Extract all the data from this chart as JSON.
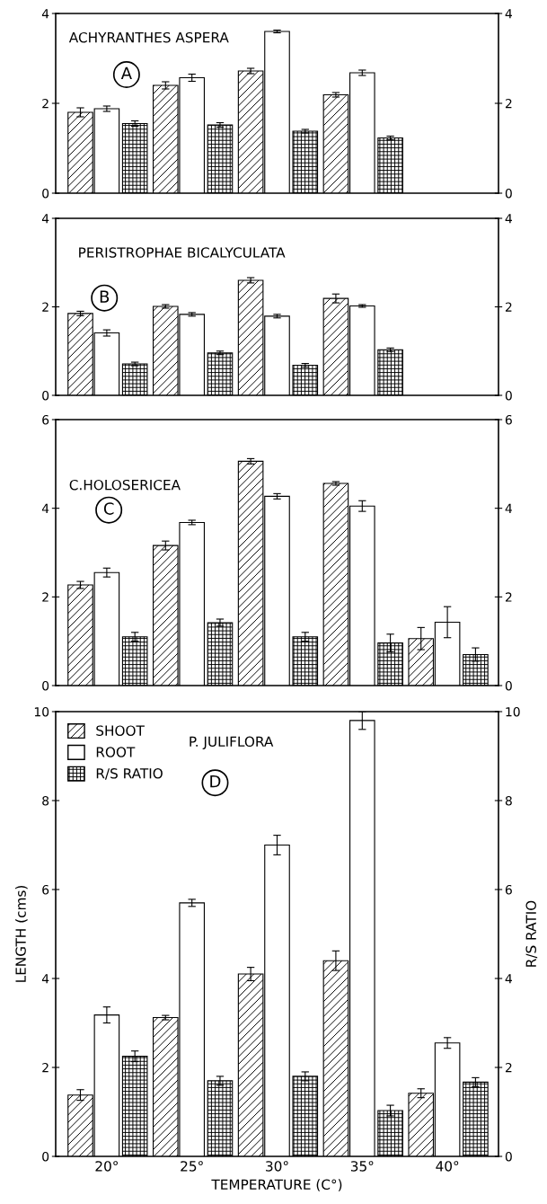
{
  "chart_data": [
    {
      "type": "bar",
      "title": "ACHYRANTHES ASPERA",
      "annotations": [
        "A"
      ],
      "categories": [
        null,
        null,
        null,
        null,
        null
      ],
      "ylim": [
        0,
        4
      ],
      "yticks": [
        0,
        2,
        4
      ],
      "y2lim": [
        0,
        4
      ],
      "y2ticks": [
        0,
        2,
        4
      ],
      "legend": false,
      "grid": false,
      "series": [
        {
          "values": [
            1.8,
            2.4,
            2.72,
            2.19,
            null
          ],
          "errors": [
            0.1,
            0.08,
            0.06,
            0.05,
            null
          ]
        },
        {
          "values": [
            1.88,
            2.57,
            3.6,
            2.68,
            null
          ],
          "errors": [
            0.06,
            0.08,
            0.03,
            0.06,
            null
          ]
        },
        {
          "values": [
            1.55,
            1.52,
            1.38,
            1.23,
            null
          ],
          "errors": [
            0.06,
            0.05,
            0.04,
            0.04,
            null
          ],
          "axis": "y2"
        }
      ]
    },
    {
      "type": "bar",
      "title": "PERISTROPHAE BICALYCULATA",
      "annotations": [
        "B"
      ],
      "categories": [
        null,
        null,
        null,
        null,
        null
      ],
      "ylim": [
        0,
        4
      ],
      "yticks": [
        0,
        2,
        4
      ],
      "y2lim": [
        0,
        4
      ],
      "y2ticks": [
        0,
        2,
        4
      ],
      "legend": false,
      "grid": false,
      "series": [
        {
          "values": [
            1.85,
            2.01,
            2.6,
            2.19,
            null
          ],
          "errors": [
            0.05,
            0.04,
            0.06,
            0.1,
            null
          ]
        },
        {
          "values": [
            1.41,
            1.83,
            1.79,
            2.02,
            null
          ],
          "errors": [
            0.07,
            0.04,
            0.04,
            0.03,
            null
          ]
        },
        {
          "values": [
            0.71,
            0.96,
            0.68,
            1.03,
            null
          ],
          "errors": [
            0.04,
            0.04,
            0.04,
            0.04,
            null
          ],
          "axis": "y2"
        }
      ]
    },
    {
      "type": "bar",
      "title": "C.HOLOSERICEA",
      "annotations": [
        "C"
      ],
      "categories": [
        null,
        null,
        null,
        null,
        null
      ],
      "ylim": [
        0,
        6
      ],
      "yticks": [
        0,
        2,
        4,
        6
      ],
      "y2lim": [
        0,
        6
      ],
      "y2ticks": [
        0,
        2,
        4,
        6
      ],
      "legend": false,
      "grid": false,
      "series": [
        {
          "values": [
            2.27,
            3.16,
            5.06,
            4.56,
            1.06
          ],
          "errors": [
            0.08,
            0.1,
            0.06,
            0.04,
            0.25
          ]
        },
        {
          "values": [
            2.55,
            3.68,
            4.27,
            4.05,
            1.43
          ],
          "errors": [
            0.1,
            0.05,
            0.06,
            0.12,
            0.35
          ]
        },
        {
          "values": [
            1.1,
            1.42,
            1.1,
            0.96,
            0.7
          ],
          "errors": [
            0.1,
            0.08,
            0.1,
            0.2,
            0.15
          ],
          "axis": "y2"
        }
      ]
    },
    {
      "type": "bar",
      "title": "P. JULIFLORA",
      "annotations": [
        "D"
      ],
      "categories": [
        "20°",
        "25°",
        "30°",
        "35°",
        "40°"
      ],
      "xlabel": "TEMPERATURE (C°)",
      "ylabel": "LENGTH (cms)",
      "y2label": "R/S RATIO",
      "ylim": [
        0,
        10
      ],
      "yticks": [
        0,
        2,
        4,
        6,
        8,
        10
      ],
      "y2lim": [
        0,
        10
      ],
      "y2ticks": [
        0,
        2,
        4,
        6,
        8,
        10
      ],
      "legend": "top left",
      "grid": false,
      "series": [
        {
          "name": "SHOOT",
          "values": [
            1.38,
            3.12,
            4.1,
            4.4,
            1.42
          ],
          "errors": [
            0.12,
            0.05,
            0.15,
            0.22,
            0.1
          ]
        },
        {
          "name": "ROOT",
          "values": [
            3.18,
            5.7,
            7.0,
            9.8,
            2.55
          ],
          "errors": [
            0.18,
            0.08,
            0.22,
            0.2,
            0.12
          ]
        },
        {
          "name": "R/S RATIO",
          "values": [
            2.25,
            1.7,
            1.8,
            1.03,
            1.67
          ],
          "errors": [
            0.12,
            0.1,
            0.1,
            0.12,
            0.1
          ],
          "axis": "y2"
        }
      ]
    }
  ]
}
